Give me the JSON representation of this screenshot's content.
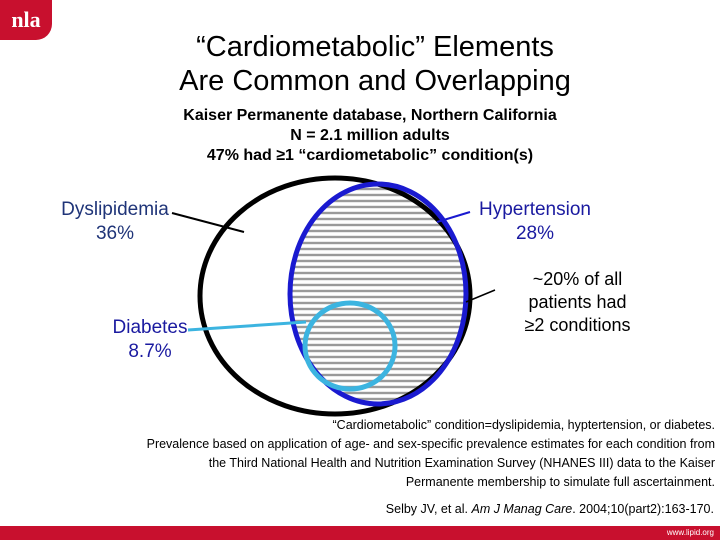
{
  "logo": {
    "text": "nla"
  },
  "title": {
    "line1": "“Cardiometabolic” Elements",
    "line2": "Are Common and Overlapping"
  },
  "subtitle": {
    "line1": "Kaiser Permanente database, Northern California",
    "line2": "N = 2.1 million adults",
    "line3": "47% had ≥1 “cardiometabolic” condition(s)"
  },
  "labels": {
    "dyslipidemia": {
      "name": "Dyslipidemia",
      "value": "36%"
    },
    "hypertension": {
      "name": "Hypertension",
      "value": "28%"
    },
    "diabetes": {
      "name": "Diabetes",
      "value": "8.7%"
    },
    "overlap": {
      "line1": "~20% of all",
      "line2": "patients had",
      "line3": "≥2 conditions"
    }
  },
  "colors": {
    "dyslipidemia": "#000000",
    "hypertension": "#1a1ad0",
    "diabetes": "#3cb4e0",
    "overlap_fill": "#9a9a9a",
    "brand": "#c8102e"
  },
  "footnote": {
    "line1": "“Cardiometabolic” condition=dyslipidemia, hyptertension, or diabetes.",
    "line2": "Prevalence based on application of age- and sex-specific prevalence estimates for each condition from",
    "line3": "the Third National Health and Nutrition Examination Survey (NHANES III) data to the Kaiser",
    "line4": "Permanente membership to simulate full ascertainment."
  },
  "citation": {
    "authors": "Selby JV, et al. ",
    "journal": "Am J Manag Care",
    "rest": ". 2004;10(part2):163-170."
  },
  "footer": {
    "url": "www.lipid.org"
  }
}
